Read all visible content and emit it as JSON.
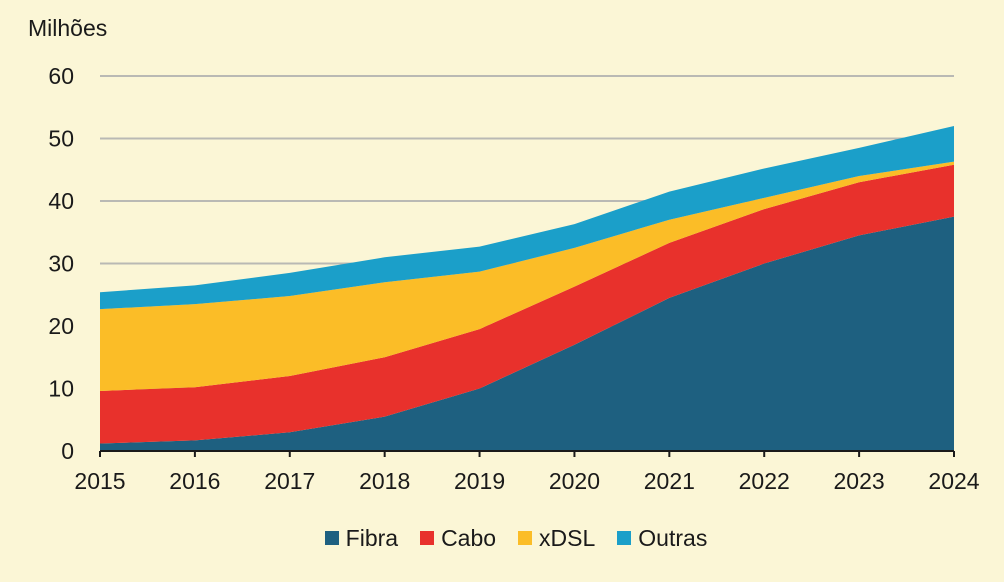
{
  "chart_data": {
    "type": "area",
    "stacked": true,
    "ylabel": "Milhões",
    "ylim": [
      0,
      60
    ],
    "yticks": [
      0,
      10,
      20,
      30,
      40,
      50,
      60
    ],
    "grid": true,
    "legend_position": "bottom",
    "categories": [
      "2015",
      "2016",
      "2017",
      "2018",
      "2019",
      "2020",
      "2021",
      "2022",
      "2023",
      "2024"
    ],
    "series": [
      {
        "name": "Fibra",
        "color": "#1e6080",
        "values": [
          1.2,
          1.7,
          3.0,
          5.5,
          10.0,
          17.0,
          24.5,
          30.0,
          34.5,
          37.5
        ]
      },
      {
        "name": "Cabo",
        "color": "#e8312c",
        "values": [
          8.4,
          8.5,
          9.0,
          9.5,
          9.5,
          9.3,
          8.8,
          8.7,
          8.5,
          8.3
        ]
      },
      {
        "name": "xDSL",
        "color": "#fbbd27",
        "values": [
          13.1,
          13.3,
          12.8,
          12.0,
          9.2,
          6.2,
          3.7,
          1.8,
          1.0,
          0.5
        ]
      },
      {
        "name": "Outras",
        "color": "#1b9fc9",
        "values": [
          2.7,
          3.0,
          3.7,
          4.0,
          4.0,
          3.8,
          4.5,
          4.7,
          4.5,
          5.7
        ]
      }
    ]
  }
}
